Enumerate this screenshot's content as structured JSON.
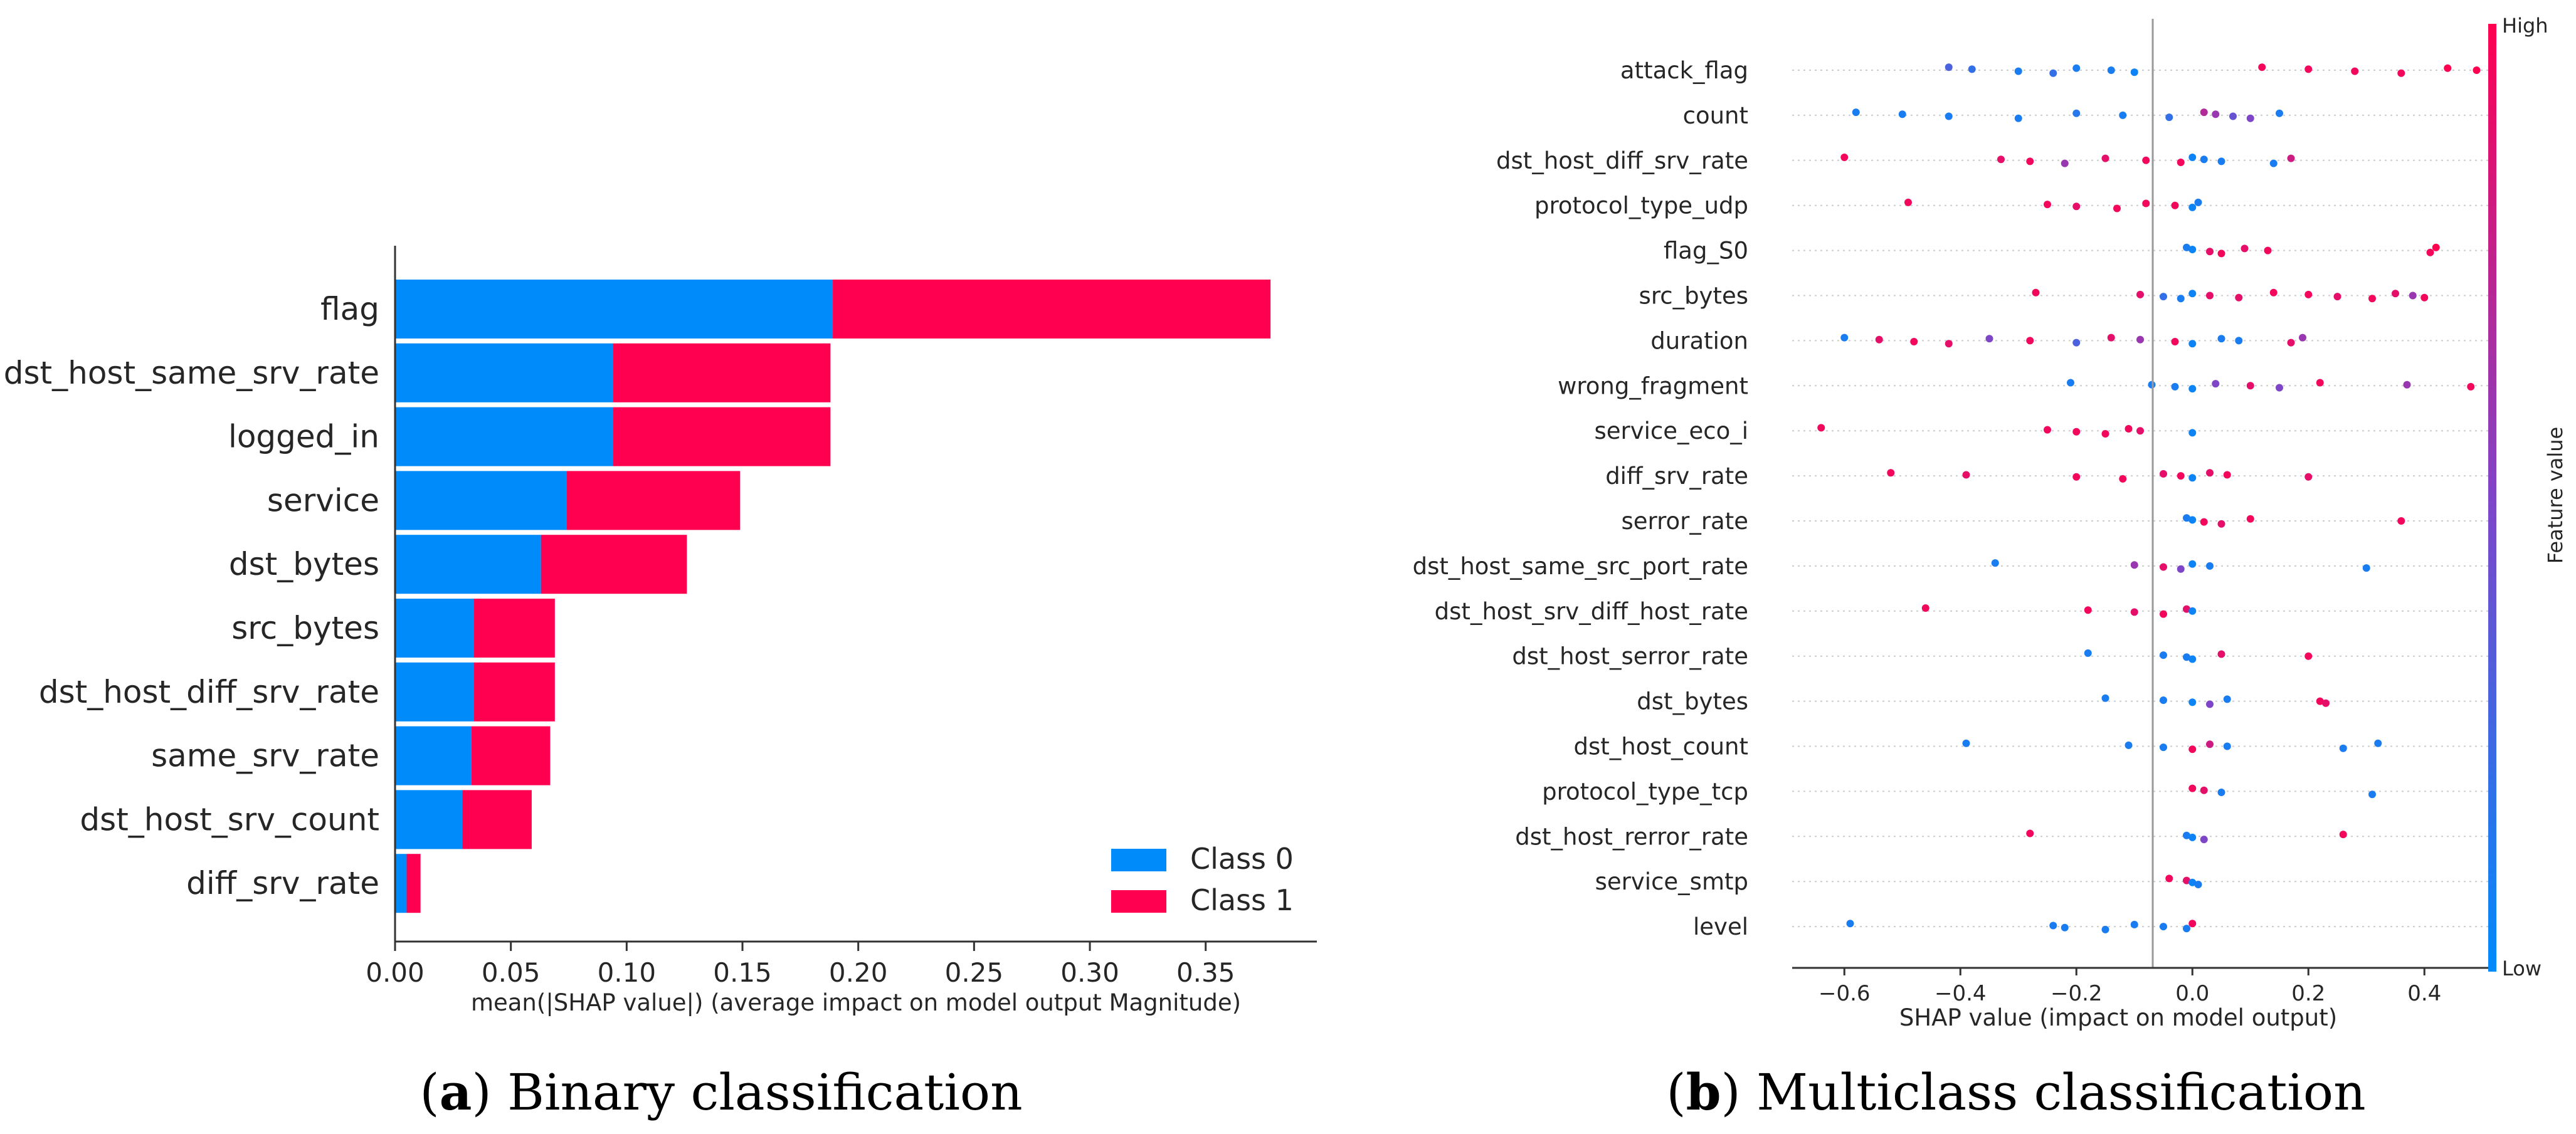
{
  "colors": {
    "class0": "#008bfb",
    "class1": "#ff0051",
    "axis": "#333333",
    "text": "#262626",
    "zero_line": "#999999",
    "grid": "#cccccc"
  },
  "captions": {
    "a": {
      "letter": "a",
      "text": "Binary classification"
    },
    "b": {
      "letter": "b",
      "text": "Multiclass classification"
    }
  },
  "chart_data": [
    {
      "type": "bar",
      "stacked": true,
      "orientation": "horizontal",
      "categories": [
        "flag",
        "dst_host_same_srv_rate",
        "logged_in",
        "service",
        "dst_bytes",
        "src_bytes",
        "dst_host_diff_srv_rate",
        "same_srv_rate",
        "dst_host_srv_count",
        "diff_srv_rate"
      ],
      "series": [
        {
          "name": "Class 0",
          "values": [
            0.189,
            0.094,
            0.094,
            0.074,
            0.063,
            0.034,
            0.034,
            0.033,
            0.029,
            0.005
          ]
        },
        {
          "name": "Class 1",
          "values": [
            0.189,
            0.094,
            0.094,
            0.075,
            0.063,
            0.035,
            0.035,
            0.034,
            0.03,
            0.006
          ]
        }
      ],
      "xlabel": "mean(|SHAP value|) (average impact on model output Magnitude)",
      "xticks": [
        "0.00",
        "0.05",
        "0.10",
        "0.15",
        "0.20",
        "0.25",
        "0.30",
        "0.35"
      ],
      "xlim": [
        0,
        0.398
      ],
      "legend_position": "bottom-right"
    },
    {
      "type": "scatter",
      "subtype": "beeswarm",
      "features": [
        {
          "name": "attack_flag",
          "points": [
            [
              -0.42,
              0.3
            ],
            [
              -0.38,
              0.2
            ],
            [
              -0.3,
              0.1
            ],
            [
              -0.24,
              0.2
            ],
            [
              -0.2,
              0.1
            ],
            [
              -0.14,
              0.1
            ],
            [
              -0.1,
              0.05
            ],
            [
              0.12,
              0.95
            ],
            [
              0.2,
              0.95
            ],
            [
              0.28,
              0.95
            ],
            [
              0.36,
              0.95
            ],
            [
              0.44,
              1.0
            ],
            [
              0.49,
              1.0
            ]
          ]
        },
        {
          "name": "count",
          "points": [
            [
              -0.58,
              0.1
            ],
            [
              -0.5,
              0.1
            ],
            [
              -0.42,
              0.1
            ],
            [
              -0.3,
              0.1
            ],
            [
              -0.2,
              0.15
            ],
            [
              -0.12,
              0.1
            ],
            [
              -0.04,
              0.2
            ],
            [
              0.02,
              0.7
            ],
            [
              0.04,
              0.6
            ],
            [
              0.07,
              0.4
            ],
            [
              0.1,
              0.5
            ],
            [
              0.15,
              0.1
            ]
          ]
        },
        {
          "name": "dst_host_diff_srv_rate",
          "points": [
            [
              -0.6,
              0.95
            ],
            [
              -0.33,
              0.9
            ],
            [
              -0.28,
              0.95
            ],
            [
              -0.22,
              0.6
            ],
            [
              -0.15,
              0.9
            ],
            [
              -0.08,
              0.95
            ],
            [
              -0.02,
              0.95
            ],
            [
              0.0,
              0.05
            ],
            [
              0.02,
              0.1
            ],
            [
              0.05,
              0.1
            ],
            [
              0.14,
              0.1
            ],
            [
              0.17,
              0.8
            ]
          ]
        },
        {
          "name": "protocol_type_udp",
          "points": [
            [
              -0.49,
              0.95
            ],
            [
              -0.25,
              0.95
            ],
            [
              -0.2,
              0.9
            ],
            [
              -0.13,
              0.95
            ],
            [
              -0.08,
              0.95
            ],
            [
              -0.03,
              0.95
            ],
            [
              0.0,
              0.05
            ],
            [
              0.01,
              0.1
            ]
          ]
        },
        {
          "name": "flag_S0",
          "points": [
            [
              -0.01,
              0.1
            ],
            [
              0.0,
              0.05
            ],
            [
              0.03,
              0.9
            ],
            [
              0.05,
              0.95
            ],
            [
              0.09,
              0.9
            ],
            [
              0.13,
              0.95
            ],
            [
              0.41,
              0.95
            ],
            [
              0.42,
              1.0
            ]
          ]
        },
        {
          "name": "src_bytes",
          "points": [
            [
              -0.27,
              0.95
            ],
            [
              -0.09,
              0.9
            ],
            [
              -0.05,
              0.2
            ],
            [
              -0.02,
              0.1
            ],
            [
              0.0,
              0.05
            ],
            [
              0.03,
              0.9
            ],
            [
              0.08,
              0.9
            ],
            [
              0.14,
              0.95
            ],
            [
              0.2,
              0.95
            ],
            [
              0.25,
              0.9
            ],
            [
              0.31,
              0.95
            ],
            [
              0.35,
              0.9
            ],
            [
              0.38,
              0.6
            ],
            [
              0.4,
              0.95
            ]
          ]
        },
        {
          "name": "duration",
          "points": [
            [
              -0.6,
              0.1
            ],
            [
              -0.54,
              0.9
            ],
            [
              -0.48,
              0.95
            ],
            [
              -0.42,
              0.9
            ],
            [
              -0.35,
              0.5
            ],
            [
              -0.28,
              0.95
            ],
            [
              -0.2,
              0.3
            ],
            [
              -0.14,
              0.9
            ],
            [
              -0.09,
              0.6
            ],
            [
              -0.03,
              0.95
            ],
            [
              0.0,
              0.05
            ],
            [
              0.05,
              0.1
            ],
            [
              0.08,
              0.1
            ],
            [
              0.17,
              0.9
            ],
            [
              0.19,
              0.6
            ]
          ]
        },
        {
          "name": "wrong_fragment",
          "points": [
            [
              -0.21,
              0.1
            ],
            [
              -0.07,
              0.1
            ],
            [
              -0.03,
              0.1
            ],
            [
              0.0,
              0.05
            ],
            [
              0.04,
              0.5
            ],
            [
              0.1,
              0.9
            ],
            [
              0.15,
              0.5
            ],
            [
              0.22,
              0.95
            ],
            [
              0.37,
              0.6
            ],
            [
              0.48,
              0.95
            ]
          ]
        },
        {
          "name": "service_eco_i",
          "points": [
            [
              -0.64,
              0.95
            ],
            [
              -0.25,
              0.95
            ],
            [
              -0.2,
              0.95
            ],
            [
              -0.15,
              0.95
            ],
            [
              -0.11,
              0.95
            ],
            [
              -0.09,
              0.9
            ],
            [
              0.0,
              0.05
            ]
          ]
        },
        {
          "name": "diff_srv_rate",
          "points": [
            [
              -0.52,
              0.95
            ],
            [
              -0.39,
              0.9
            ],
            [
              -0.2,
              0.95
            ],
            [
              -0.12,
              0.95
            ],
            [
              -0.05,
              0.9
            ],
            [
              -0.02,
              0.95
            ],
            [
              0.0,
              0.05
            ],
            [
              0.03,
              0.9
            ],
            [
              0.06,
              0.95
            ],
            [
              0.2,
              0.9
            ]
          ]
        },
        {
          "name": "serror_rate",
          "points": [
            [
              -0.01,
              0.1
            ],
            [
              0.0,
              0.05
            ],
            [
              0.02,
              0.95
            ],
            [
              0.05,
              0.9
            ],
            [
              0.1,
              0.95
            ],
            [
              0.36,
              0.95
            ]
          ]
        },
        {
          "name": "dst_host_same_src_port_rate",
          "points": [
            [
              -0.34,
              0.1
            ],
            [
              -0.1,
              0.6
            ],
            [
              -0.05,
              0.9
            ],
            [
              -0.02,
              0.5
            ],
            [
              0.0,
              0.05
            ],
            [
              0.03,
              0.1
            ],
            [
              0.3,
              0.1
            ]
          ]
        },
        {
          "name": "dst_host_srv_diff_host_rate",
          "points": [
            [
              -0.46,
              0.95
            ],
            [
              -0.18,
              0.95
            ],
            [
              -0.1,
              0.9
            ],
            [
              -0.05,
              0.95
            ],
            [
              -0.01,
              0.9
            ],
            [
              0.0,
              0.05
            ]
          ]
        },
        {
          "name": "dst_host_serror_rate",
          "points": [
            [
              -0.18,
              0.1
            ],
            [
              -0.05,
              0.1
            ],
            [
              -0.01,
              0.1
            ],
            [
              0.0,
              0.05
            ],
            [
              0.05,
              0.9
            ],
            [
              0.2,
              0.95
            ]
          ]
        },
        {
          "name": "dst_bytes",
          "points": [
            [
              -0.15,
              0.1
            ],
            [
              -0.05,
              0.1
            ],
            [
              0.0,
              0.05
            ],
            [
              0.03,
              0.5
            ],
            [
              0.06,
              0.1
            ],
            [
              0.22,
              0.95
            ],
            [
              0.23,
              0.9
            ]
          ]
        },
        {
          "name": "dst_host_count",
          "points": [
            [
              -0.39,
              0.1
            ],
            [
              -0.11,
              0.1
            ],
            [
              -0.05,
              0.1
            ],
            [
              0.0,
              0.95
            ],
            [
              0.03,
              0.8
            ],
            [
              0.06,
              0.1
            ],
            [
              0.26,
              0.1
            ],
            [
              0.32,
              0.1
            ]
          ]
        },
        {
          "name": "protocol_type_tcp",
          "points": [
            [
              0.0,
              0.95
            ],
            [
              0.02,
              0.9
            ],
            [
              0.05,
              0.1
            ],
            [
              0.31,
              0.1
            ]
          ]
        },
        {
          "name": "dst_host_rerror_rate",
          "points": [
            [
              -0.28,
              0.95
            ],
            [
              -0.01,
              0.1
            ],
            [
              0.0,
              0.05
            ],
            [
              0.02,
              0.5
            ],
            [
              0.26,
              0.95
            ]
          ]
        },
        {
          "name": "service_smtp",
          "points": [
            [
              -0.04,
              0.95
            ],
            [
              -0.01,
              0.9
            ],
            [
              0.0,
              0.05
            ],
            [
              0.01,
              0.1
            ]
          ]
        },
        {
          "name": "level",
          "points": [
            [
              -0.59,
              0.1
            ],
            [
              -0.24,
              0.1
            ],
            [
              -0.22,
              0.1
            ],
            [
              -0.15,
              0.1
            ],
            [
              -0.1,
              0.1
            ],
            [
              -0.05,
              0.1
            ],
            [
              -0.01,
              0.1
            ],
            [
              0.0,
              0.95
            ]
          ]
        }
      ],
      "xlabel": "SHAP value (impact on model output)",
      "xticks": [
        "−0.6",
        "−0.4",
        "−0.2",
        "0.0",
        "0.2",
        "0.4"
      ],
      "xlim": [
        -0.69,
        0.51
      ],
      "colorbar": {
        "label": "Feature value",
        "high": "High",
        "low": "Low"
      },
      "grid": false
    }
  ]
}
